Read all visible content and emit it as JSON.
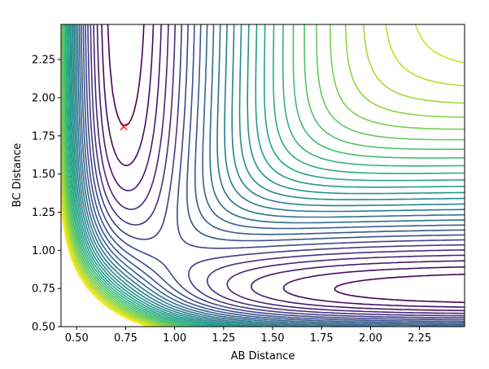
{
  "chart_data": {
    "type": "contour",
    "xlabel": "AB Distance",
    "ylabel": "BC Distance",
    "xlim": [
      0.42,
      2.48
    ],
    "ylim": [
      0.5,
      2.48
    ],
    "x_ticks": [
      "0.50",
      "0.75",
      "1.00",
      "1.25",
      "1.50",
      "1.75",
      "2.00",
      "2.25"
    ],
    "y_ticks": [
      "0.50",
      "0.75",
      "1.00",
      "1.25",
      "1.50",
      "1.75",
      "2.00",
      "2.25"
    ],
    "colormap": "viridis",
    "contour_levels": 30,
    "surface": "LEPS-like potential energy surface",
    "marker": {
      "symbol": "x",
      "color": "#ff0000",
      "x": 0.74,
      "y": 1.81
    }
  }
}
